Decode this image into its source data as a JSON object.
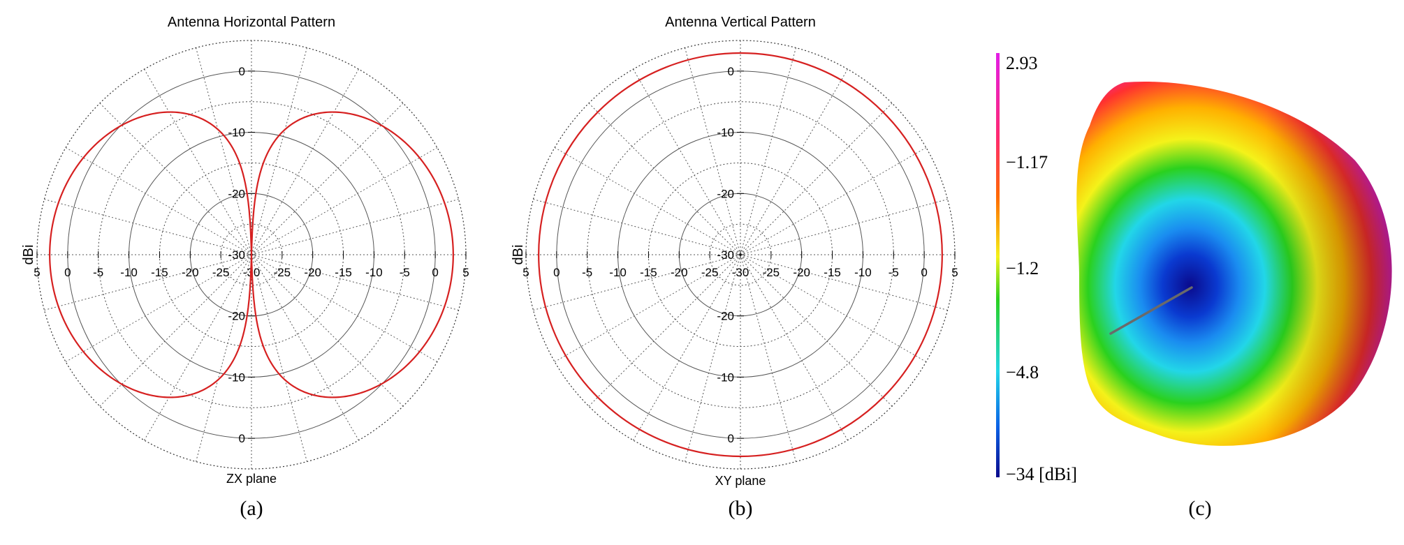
{
  "chart_data": [
    {
      "type": "polar",
      "title": "Antenna Horizontal Pattern",
      "radial_label": "dBi",
      "plane_label": "ZX plane",
      "caption": "(a)",
      "radial_range": [
        -30,
        5
      ],
      "radial_ticks": [
        "-30",
        "-25",
        "-20",
        "-15",
        "-10",
        "-5",
        "0",
        "5"
      ],
      "vertical_ticks": [
        "0",
        "-10",
        "-20",
        "-30"
      ],
      "angle_step_deg": 15,
      "series": [
        {
          "color": "#d62020",
          "shape": "figure-eight",
          "max_gain": 2.93,
          "min_gain": -30
        }
      ]
    },
    {
      "type": "polar",
      "title": "Antenna Vertical Pattern",
      "radial_label": "dBi",
      "plane_label": "XY plane",
      "caption": "(b)",
      "radial_range": [
        -30,
        5
      ],
      "radial_ticks": [
        "-30",
        "-25",
        "-20",
        "-15",
        "-10",
        "-5",
        "0",
        "5"
      ],
      "vertical_ticks": [
        "0",
        "-10",
        "-20",
        "-30"
      ],
      "angle_step_deg": 15,
      "series": [
        {
          "color": "#d62020",
          "shape": "omnidirectional",
          "gain": 2.93
        }
      ]
    },
    {
      "type": "3d-pattern",
      "caption": "(c)",
      "colorbar": {
        "ticks": [
          "2.93",
          "−1.17",
          "−1.2",
          "−4.8",
          "−34 [dBi]"
        ],
        "colors": [
          "#e21ee6",
          "#ff2a6e",
          "#ff6a00",
          "#ffd800",
          "#f4f21a",
          "#2ad11e",
          "#22d6e8",
          "#0a62e6",
          "#0a0a8c"
        ]
      }
    }
  ]
}
